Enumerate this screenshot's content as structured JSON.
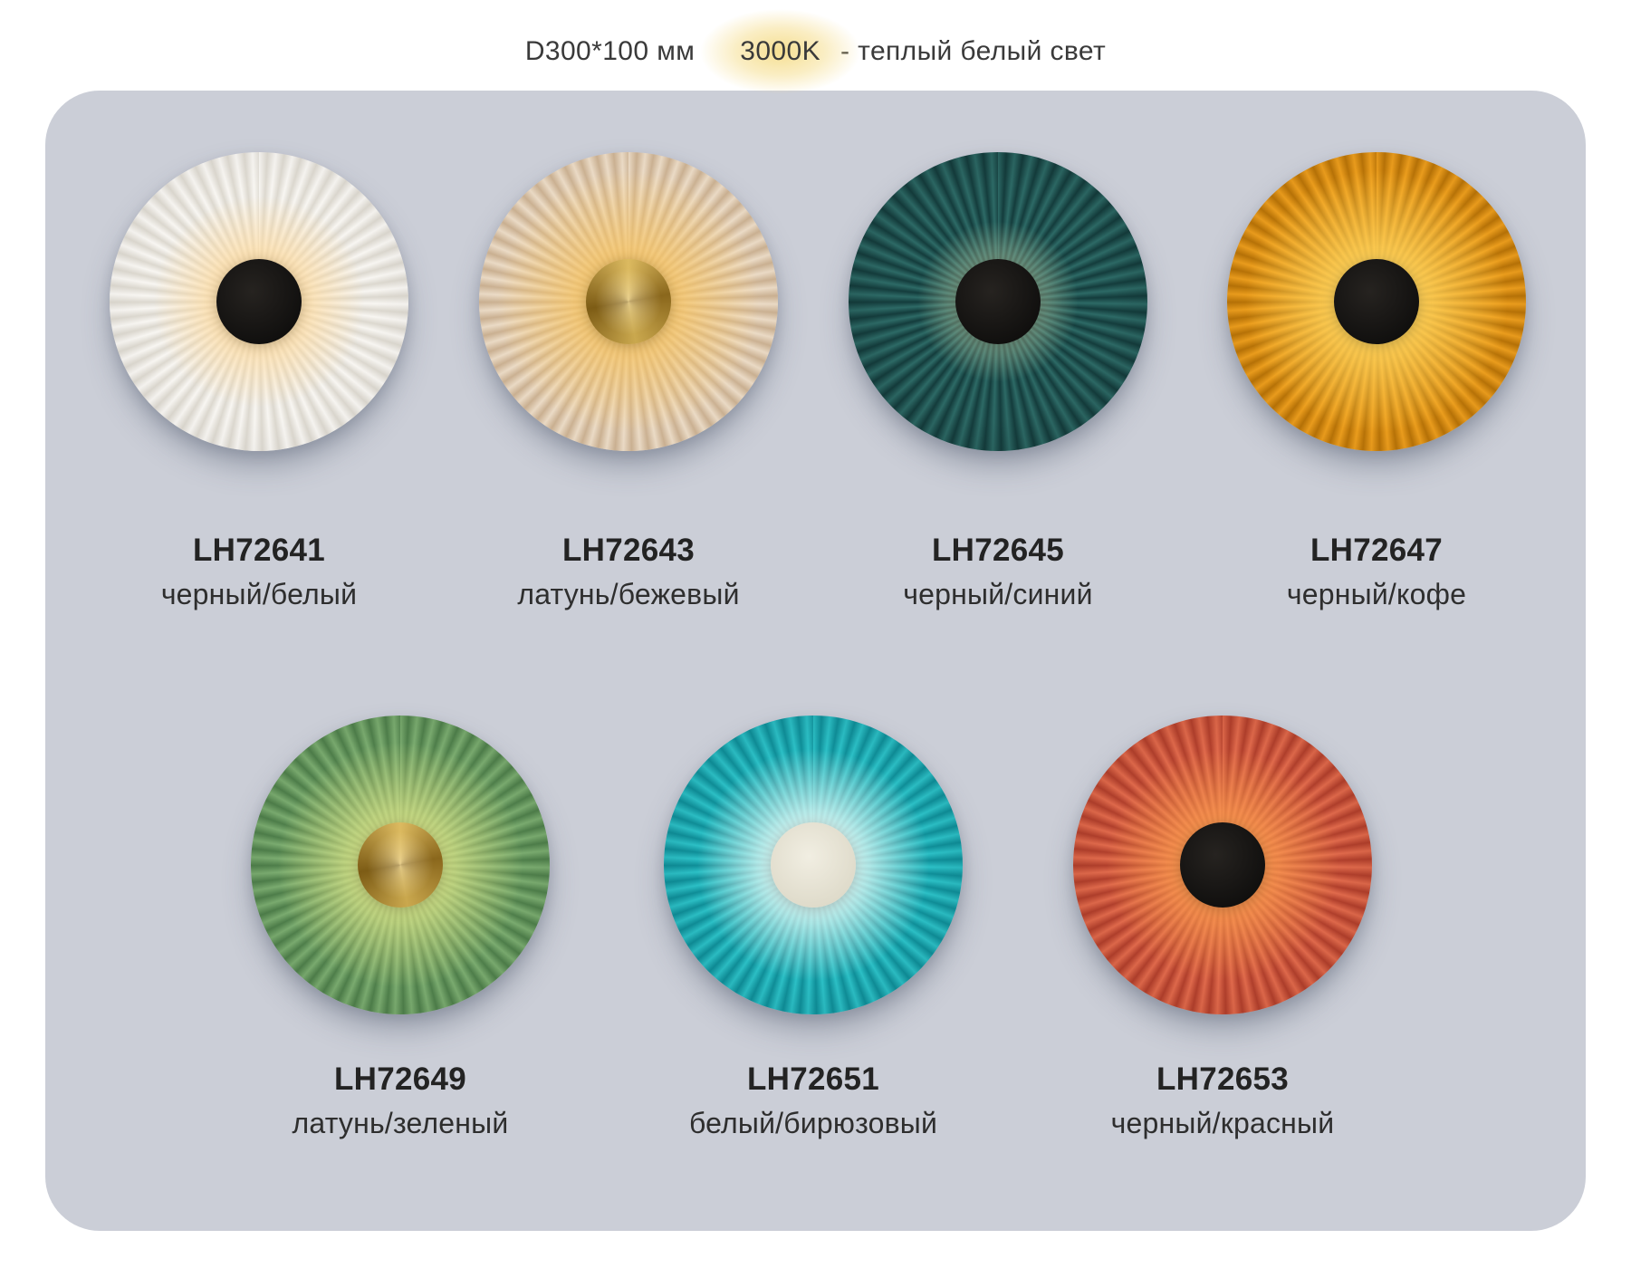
{
  "header": {
    "size": "D300*100 мм",
    "temperature": "3000K",
    "temperature_desc": "- теплый белый свет",
    "colors": {
      "highlight": "#f6df92"
    }
  },
  "card": {
    "background": "#cbced7"
  },
  "products": [
    {
      "code": "LH72641",
      "name": "черный/белый",
      "cap": "black",
      "colors": {
        "pleat_light": "#f8f6f2",
        "pleat_dark": "#dcd8cf",
        "glow": "rgba(255,219,158,0.90)",
        "glow_spread": "50%",
        "rim": "rgba(90,90,100,0.10)"
      }
    },
    {
      "code": "LH72643",
      "name": "латунь/бежевый",
      "cap": "brass",
      "colors": {
        "pleat_light": "#eedec9",
        "pleat_dark": "#cdb394",
        "glow": "rgba(246,196,100,0.95)",
        "glow_spread": "62%",
        "rim": "rgba(100,80,60,0.12)"
      }
    },
    {
      "code": "LH72645",
      "name": "черный/синий",
      "cap": "black",
      "colors": {
        "pleat_light": "#2d6a66",
        "pleat_dark": "#143c3c",
        "glow": "rgba(216,230,184,0.50)",
        "glow_spread": "38%",
        "rim": "rgba(0,10,10,0.22)"
      }
    },
    {
      "code": "LH72647",
      "name": "черный/кофе",
      "cap": "black",
      "colors": {
        "pleat_light": "#efa01e",
        "pleat_dark": "#b97407",
        "glow": "rgba(255,214,96,0.95)",
        "glow_spread": "62%",
        "rim": "rgba(110,60,0,0.22)"
      }
    },
    {
      "code": "LH72649",
      "name": "латунь/зеленый",
      "cap": "brass",
      "colors": {
        "pleat_light": "#7cad71",
        "pleat_dark": "#4f7f4b",
        "glow": "rgba(231,236,140,0.85)",
        "glow_spread": "58%",
        "rim": "rgba(20,50,20,0.18)"
      }
    },
    {
      "code": "LH72651",
      "name": "белый/бирюзовый",
      "cap": "cream",
      "colors": {
        "pleat_light": "#2cc0c6",
        "pleat_dark": "#0f8e98",
        "glow": "rgba(240,255,250,0.95)",
        "glow_spread": "55%",
        "rim": "rgba(0,40,50,0.18)"
      }
    },
    {
      "code": "LH72653",
      "name": "черный/красный",
      "cap": "black",
      "colors": {
        "pleat_light": "#e06a4c",
        "pleat_dark": "#b03f2c",
        "glow": "rgba(255,160,80,0.90)",
        "glow_spread": "55%",
        "rim": "rgba(90,20,0,0.18)"
      }
    }
  ]
}
